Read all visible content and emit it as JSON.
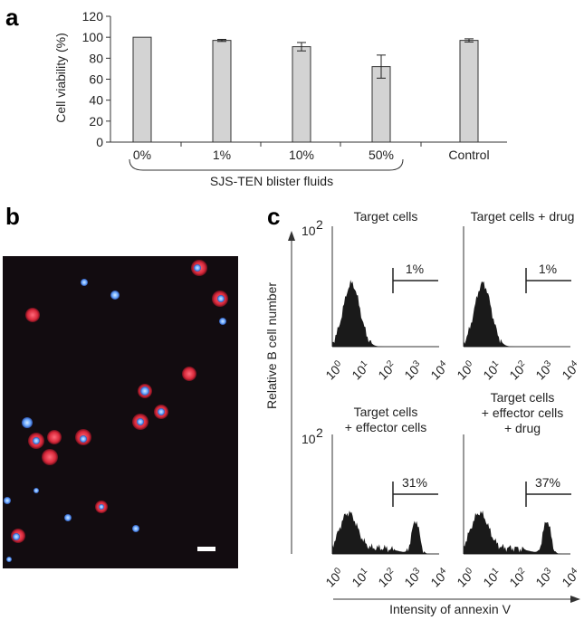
{
  "panel_letters": [
    "a",
    "b",
    "c"
  ],
  "panel_a": {
    "chart_data": {
      "type": "bar",
      "categories": [
        "0%",
        "1%",
        "10%",
        "50%",
        "Control"
      ],
      "values": [
        100,
        97,
        91,
        72,
        97
      ],
      "errors": [
        0,
        1,
        4,
        11,
        1.5
      ],
      "ylabel": "Cell viability (%)",
      "ylim": [
        0,
        120
      ],
      "yticks": [
        "0",
        "20",
        "40",
        "60",
        "80",
        "100",
        "120"
      ],
      "bracket_label": "SJS-TEN blister fluids",
      "bar_color": "#d3d3d3",
      "grid": false
    }
  },
  "panel_b": {
    "description_colors": {
      "background": "#120c10",
      "cytoplasm": "#d8283a",
      "nucleus": "#6aa8ff"
    }
  },
  "panel_c": {
    "chart_data": {
      "type": "area",
      "y_axis_label": "Relative B cell number",
      "x_axis_label": "Intensity of annexin V",
      "y_max_tick": "10",
      "y_max_exp": "2",
      "x_ticks": [
        {
          "base": "10",
          "exp": "0"
        },
        {
          "base": "10",
          "exp": "1"
        },
        {
          "base": "10",
          "exp": "2"
        },
        {
          "base": "10",
          "exp": "3"
        },
        {
          "base": "10",
          "exp": "4"
        }
      ],
      "histograms": [
        {
          "title_lines": [
            "Target cells"
          ],
          "gate_label": "1%",
          "bimodal": false
        },
        {
          "title_lines": [
            "Target cells + drug"
          ],
          "gate_label": "1%",
          "bimodal": false
        },
        {
          "title_lines": [
            "Target cells",
            "+ effector cells"
          ],
          "gate_label": "31%",
          "bimodal": true
        },
        {
          "title_lines": [
            "Target cells",
            "+ effector cells",
            "+ drug"
          ],
          "gate_label": "37%",
          "bimodal": true
        }
      ],
      "fill_color": "#1a1a1a"
    }
  }
}
